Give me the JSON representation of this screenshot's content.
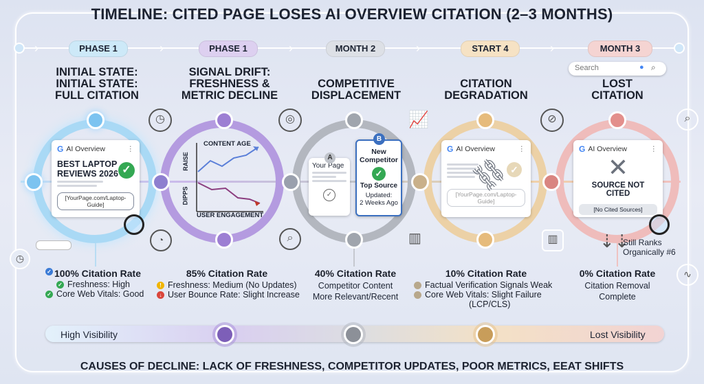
{
  "title": "TIMELINE: CITED PAGE LOSES AI OVERVIEW CITATION (2–3 MONTHS)",
  "footer": "CAUSES OF DECLINE: LACK OF FRESHNESS, COMPETITOR UPDATES, POOR METRICS, EEAT SHIFTS",
  "search": {
    "placeholder": "Search"
  },
  "colors": {
    "blue": "#7cc3f0",
    "purple": "#a98ad8",
    "gray": "#9aa0aa",
    "orange": "#eac48c",
    "red": "#e69a98"
  },
  "stages": [
    {
      "pill": "PHASE 1",
      "heading": [
        "INITIAL STATE:",
        "INITIAL STATE:",
        "FULL CITATION"
      ],
      "card": {
        "ai_label": "AI Overview",
        "g": "G",
        "headline": [
          "BEST LAPTOP",
          "REVIEWS 2026"
        ],
        "url": "[YourPage.com/Laptop-Guide]"
      },
      "rate": "100% Citation Rate",
      "bullets": [
        {
          "icon": "check-icon",
          "text": "Freshness: High"
        },
        {
          "icon": "check-icon",
          "text": "Core Web Vitals: Good"
        }
      ]
    },
    {
      "pill": "PHASE 1",
      "heading": [
        "SIGNAL DRIFT:",
        "FRESHNESS &",
        "METRIC DECLINE"
      ],
      "chart": {
        "top_label": "CONTENT AGE",
        "bottom_label": "USER ENGAGEMENT",
        "y_top": "RAISE",
        "y_bottom": "DIPPS"
      },
      "rate": "85% Citation Rate",
      "bullets": [
        {
          "icon": "warning-icon",
          "text": "Freshness: Medium (No Updates)"
        },
        {
          "icon": "down-arrow-icon",
          "text": "User Bounce Rate: Slight Increase"
        }
      ]
    },
    {
      "pill": "MONTH 2",
      "heading": [
        "COMPETITIVE",
        "DISPLACEMENT"
      ],
      "your_page": {
        "badge": "A",
        "label": "Your Page"
      },
      "competitor": {
        "badge": "B",
        "label": [
          "New",
          "Competitor"
        ],
        "top": "Top Source",
        "updated": [
          "Updated:",
          "2 Weeks Ago"
        ]
      },
      "rate": "40% Citation Rate",
      "lines": [
        "Competitor Content",
        "More Relevant/Recent"
      ]
    },
    {
      "pill": "START 4",
      "heading": [
        "CITATION",
        "DEGRADATION"
      ],
      "card": {
        "ai_label": "AI Overview",
        "g": "G",
        "url": "[YourPage.com/Laptop-Guide]"
      },
      "rate": "10% Citation Rate",
      "bullets": [
        {
          "icon": "dot-icon",
          "text": "Factual Verification Signals Weak"
        },
        {
          "icon": "dot-icon",
          "text": "Core Web Vitals: Slight Failure"
        }
      ],
      "bullet_extra": "(LCP/CLS)"
    },
    {
      "pill": "MONTH 3",
      "heading": [
        "LOST",
        "CITATION"
      ],
      "card": {
        "ai_label": "AI Overview",
        "g": "G",
        "status": "SOURCE NOT CITED",
        "box": "[No Cited Sources]"
      },
      "side_note": [
        "Still Ranks",
        "Organically #6"
      ],
      "rate": "0% Citation Rate",
      "lines": [
        "Citation Removal",
        "Complete"
      ]
    }
  ],
  "visibility": {
    "left": "High Visibility",
    "right": "Lost Visibility"
  }
}
